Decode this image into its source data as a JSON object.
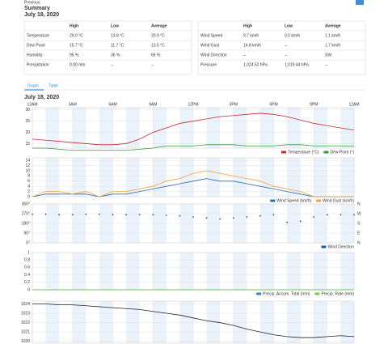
{
  "header": {
    "previous": "Previous",
    "title": "Summary",
    "date": "July 18, 2020"
  },
  "tables": [
    {
      "columns": [
        "High",
        "Low",
        "Average"
      ],
      "rows": [
        [
          "Temperature",
          "29.0 °C",
          "13.8 °C",
          "20.9 °C"
        ],
        [
          "Dew Point",
          "15.7 °C",
          "11.7 °C",
          "13.5 °C"
        ],
        [
          "Humidity",
          "95 %",
          "36 %",
          "66 %"
        ],
        [
          "Precipitation",
          "0.00 mm",
          "--",
          "--"
        ]
      ]
    },
    {
      "columns": [
        "High",
        "Low",
        "Average"
      ],
      "rows": [
        [
          "Wind Speed",
          "9.7 km/h",
          "0.0 km/h",
          "1.1 km/h"
        ],
        [
          "Wind Gust",
          "14.8 km/h",
          "--",
          "1.7 km/h"
        ],
        [
          "Wind Direction",
          "--",
          "--",
          "SW"
        ],
        [
          "Pressure",
          "1,024.52 hPa",
          "1,019.44 hPa",
          "--"
        ]
      ]
    }
  ],
  "tabs": [
    "Graph",
    "Table"
  ],
  "graph_date": "July 18, 2020",
  "chart_data": [
    {
      "type": "line",
      "x": [
        0,
        1,
        2,
        3,
        4,
        5,
        6,
        7,
        8,
        9,
        10,
        11,
        12,
        13,
        14,
        15,
        16,
        17,
        18,
        19,
        20,
        21,
        22,
        23,
        24
      ],
      "xlim": [
        0,
        24
      ],
      "xticks": [
        {
          "value": 0,
          "label": "12AM"
        },
        {
          "value": 3,
          "label": "3AM"
        },
        {
          "value": 6,
          "label": "6AM"
        },
        {
          "value": 9,
          "label": "9AM"
        },
        {
          "value": 12,
          "label": "12PM"
        },
        {
          "value": 15,
          "label": "3PM"
        },
        {
          "value": 18,
          "label": "6PM"
        },
        {
          "value": 21,
          "label": "9PM"
        },
        {
          "value": 24,
          "label": "12AM"
        }
      ],
      "ylim": [
        13,
        31
      ],
      "yticks": [
        15,
        20,
        25,
        30
      ],
      "series": [
        {
          "name": "Temperature (°C)",
          "color": "#c8262b",
          "values": [
            17,
            16.5,
            16,
            15.5,
            15,
            14.5,
            14.5,
            15,
            17,
            20,
            22,
            24,
            25,
            26,
            27,
            27.5,
            28,
            28.5,
            28,
            27,
            25.5,
            24,
            23,
            22,
            21
          ]
        },
        {
          "name": "Dew Point (°)",
          "color": "#3a9a3a",
          "values": [
            13,
            13,
            12.5,
            12,
            12,
            12,
            12,
            12,
            12.5,
            13,
            14,
            14,
            14,
            14.5,
            14.5,
            14.5,
            14,
            14,
            14,
            14.5,
            14.5,
            14,
            14,
            14,
            14
          ]
        }
      ]
    },
    {
      "type": "line",
      "x": [
        0,
        1,
        2,
        3,
        4,
        5,
        6,
        7,
        8,
        9,
        10,
        11,
        12,
        13,
        14,
        15,
        16,
        17,
        18,
        19,
        20,
        21,
        22,
        23,
        24
      ],
      "xlim": [
        0,
        24
      ],
      "ylim": [
        0,
        15
      ],
      "yticks": [
        0,
        2,
        4,
        6,
        8,
        10,
        12,
        14
      ],
      "series": [
        {
          "name": "Wind Speed (km/h)",
          "color": "#2a6db0",
          "values": [
            0,
            1,
            1,
            1,
            1,
            0,
            1,
            1,
            2,
            3,
            4,
            5,
            6,
            7,
            6,
            6,
            5,
            4,
            3,
            2,
            1,
            0,
            0,
            0,
            0
          ]
        },
        {
          "name": "Wind Gust (km/h)",
          "color": "#f0a040",
          "values": [
            0,
            2,
            2,
            1,
            2,
            0,
            2,
            2,
            3,
            4,
            6,
            7,
            9,
            10,
            9,
            8,
            7,
            6,
            4,
            3,
            2,
            0,
            0,
            0,
            0
          ]
        }
      ]
    },
    {
      "type": "scatter",
      "x": [
        0,
        1,
        2,
        3,
        4,
        5,
        6,
        7,
        8,
        9,
        10,
        11,
        12,
        13,
        14,
        15,
        16,
        17,
        18,
        19,
        20,
        21,
        22,
        23,
        24
      ],
      "xlim": [
        0,
        24
      ],
      "ylim": [
        0,
        360
      ],
      "yticks": [
        {
          "value": 0,
          "label": "0°"
        },
        {
          "value": 90,
          "label": "90°"
        },
        {
          "value": 180,
          "label": "180°"
        },
        {
          "value": 270,
          "label": "270°"
        },
        {
          "value": 360,
          "label": "360°"
        }
      ],
      "y2lim": [
        0,
        360
      ],
      "y2ticks": [
        {
          "value": 0,
          "label": "N"
        },
        {
          "value": 90,
          "label": "E"
        },
        {
          "value": 180,
          "label": "S"
        },
        {
          "value": 270,
          "label": "W"
        },
        {
          "value": 360,
          "label": "N"
        }
      ],
      "series": [
        {
          "name": "Wind Direction",
          "color": "#1f5a99",
          "values": [
            265,
            265,
            260,
            260,
            265,
            265,
            262,
            260,
            262,
            260,
            255,
            250,
            240,
            230,
            220,
            230,
            240,
            250,
            260,
            190,
            200,
            240,
            260,
            260,
            260
          ]
        }
      ]
    },
    {
      "type": "line",
      "x": [
        0,
        1,
        2,
        3,
        4,
        5,
        6,
        7,
        8,
        9,
        10,
        11,
        12,
        13,
        14,
        15,
        16,
        17,
        18,
        19,
        20,
        21,
        22,
        23,
        24
      ],
      "xlim": [
        0,
        24
      ],
      "ylim": [
        0,
        1
      ],
      "yticks": [
        0,
        0.2,
        0.4,
        0.6,
        0.8,
        1
      ],
      "series": [
        {
          "name": "Precip. Accum. Total (mm)",
          "color": "#2a8ad0",
          "values": [
            0,
            0,
            0,
            0,
            0,
            0,
            0,
            0,
            0,
            0,
            0,
            0,
            0,
            0,
            0,
            0,
            0,
            0,
            0,
            0,
            0,
            0,
            0,
            0,
            0
          ]
        },
        {
          "name": "Precip. Rate (mm)",
          "color": "#7ccf3a",
          "values": [
            0,
            0,
            0,
            0,
            0,
            0,
            0,
            0,
            0,
            0,
            0,
            0,
            0,
            0,
            0,
            0,
            0,
            0,
            0,
            0,
            0,
            0,
            0,
            0,
            0
          ]
        }
      ]
    },
    {
      "type": "line",
      "x": [
        0,
        1,
        2,
        3,
        4,
        5,
        6,
        7,
        8,
        9,
        10,
        11,
        12,
        13,
        14,
        15,
        16,
        17,
        18,
        19,
        20,
        21,
        22,
        23,
        24
      ],
      "xlim": [
        0,
        24
      ],
      "ylim": [
        1019.8,
        1024.3
      ],
      "yticks": [
        1020,
        1021,
        1022,
        1023,
        1024
      ],
      "series": [
        {
          "name": "Pressure",
          "color": "#222222",
          "values": [
            1024,
            1024,
            1023.9,
            1023.9,
            1023.8,
            1023.7,
            1023.6,
            1023.5,
            1023.4,
            1023.2,
            1023,
            1022.8,
            1022.5,
            1022.2,
            1022,
            1021.7,
            1021.3,
            1021,
            1020.7,
            1020.5,
            1020.4,
            1020.4,
            1020.5,
            1020.6,
            1020.5
          ]
        }
      ]
    }
  ]
}
